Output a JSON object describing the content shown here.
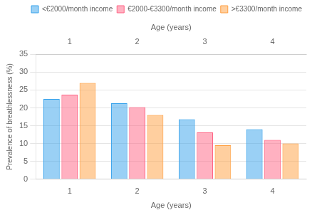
{
  "chart_data": {
    "type": "bar",
    "categories": [
      1,
      2,
      3,
      4
    ],
    "series": [
      {
        "name": "<€2000/month income",
        "values": [
          22.5,
          21.3,
          16.8,
          14.0
        ]
      },
      {
        "name": "€2000-€3300/month income",
        "values": [
          23.7,
          20.2,
          13.1,
          11.0
        ]
      },
      {
        "name": ">€3300/month income",
        "values": [
          27.0,
          18.0,
          9.5,
          10.0
        ]
      }
    ],
    "xlabel": "Age (years)",
    "x2label": "Age (years)",
    "ylabel": "Prevalence of breathlessness (%)",
    "ylim": [
      0,
      35
    ],
    "yticks": [
      0,
      5,
      10,
      15,
      20,
      25,
      30,
      35
    ],
    "grid": true,
    "legend": "upper right"
  }
}
